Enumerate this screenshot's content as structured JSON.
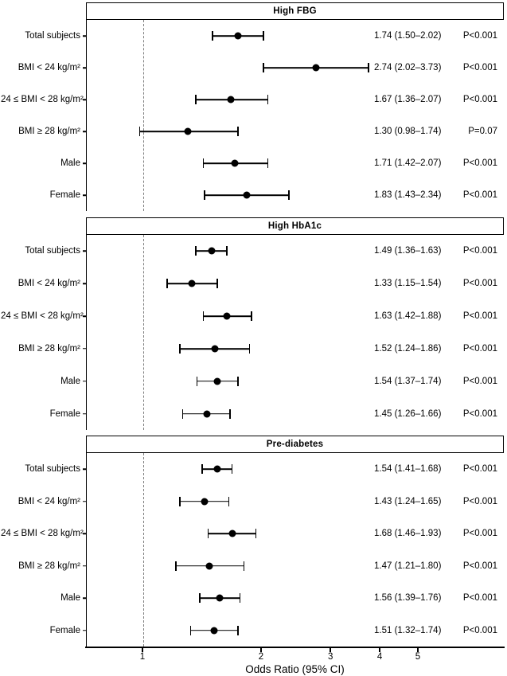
{
  "chart_data": {
    "type": "scatter",
    "subtype": "forest-plot",
    "xlabel": "Odds Ratio (95% CI)",
    "x_scale": "log10",
    "x_ticks": [
      "1",
      "2",
      "3",
      "4",
      "5"
    ],
    "x_tick_values": [
      1,
      2,
      3,
      4,
      5
    ],
    "reference_line_x": 1,
    "grid": false,
    "categories": [
      "Total subjects",
      "BMI < 24 kg/m²",
      "24 ≤ BMI < 28 kg/m²",
      "BMI ≥ 28 kg/m²",
      "Male",
      "Female"
    ],
    "colors": {
      "point": "#000000",
      "ci_line": "#000000",
      "reference_line": "#7f7f7f",
      "text": "#000000",
      "background": "#ffffff"
    },
    "panels": [
      {
        "title": "High FBG",
        "rows": [
          {
            "label": "Total subjects",
            "or": 1.74,
            "ci_low": 1.5,
            "ci_high": 2.02,
            "estimate_text": "1.74 (1.50–2.02)",
            "p_text": "P<0.001"
          },
          {
            "label": "BMI < 24 kg/m²",
            "or": 2.74,
            "ci_low": 2.02,
            "ci_high": 3.73,
            "estimate_text": "2.74 (2.02–3.73)",
            "p_text": "P<0.001"
          },
          {
            "label": "24 ≤ BMI < 28 kg/m²",
            "or": 1.67,
            "ci_low": 1.36,
            "ci_high": 2.07,
            "estimate_text": "1.67 (1.36–2.07)",
            "p_text": "P<0.001"
          },
          {
            "label": "BMI ≥ 28 kg/m²",
            "or": 1.3,
            "ci_low": 0.98,
            "ci_high": 1.74,
            "estimate_text": "1.30 (0.98–1.74)",
            "p_text": "P=0.07"
          },
          {
            "label": "Male",
            "or": 1.71,
            "ci_low": 1.42,
            "ci_high": 2.07,
            "estimate_text": "1.71 (1.42–2.07)",
            "p_text": "P<0.001"
          },
          {
            "label": "Female",
            "or": 1.83,
            "ci_low": 1.43,
            "ci_high": 2.34,
            "estimate_text": "1.83 (1.43–2.34)",
            "p_text": "P<0.001"
          }
        ]
      },
      {
        "title": "High HbA1c",
        "rows": [
          {
            "label": "Total subjects",
            "or": 1.49,
            "ci_low": 1.36,
            "ci_high": 1.63,
            "estimate_text": "1.49 (1.36–1.63)",
            "p_text": "P<0.001"
          },
          {
            "label": "BMI < 24 kg/m²",
            "or": 1.33,
            "ci_low": 1.15,
            "ci_high": 1.54,
            "estimate_text": "1.33 (1.15–1.54)",
            "p_text": "P<0.001"
          },
          {
            "label": "24 ≤ BMI < 28 kg/m²",
            "or": 1.63,
            "ci_low": 1.42,
            "ci_high": 1.88,
            "estimate_text": "1.63 (1.42–1.88)",
            "p_text": "P<0.001"
          },
          {
            "label": "BMI ≥ 28 kg/m²",
            "or": 1.52,
            "ci_low": 1.24,
            "ci_high": 1.86,
            "estimate_text": "1.52 (1.24–1.86)",
            "p_text": "P<0.001"
          },
          {
            "label": "Male",
            "or": 1.54,
            "ci_low": 1.37,
            "ci_high": 1.74,
            "estimate_text": "1.54 (1.37–1.74)",
            "p_text": "P<0.001"
          },
          {
            "label": "Female",
            "or": 1.45,
            "ci_low": 1.26,
            "ci_high": 1.66,
            "estimate_text": "1.45 (1.26–1.66)",
            "p_text": "P<0.001"
          }
        ]
      },
      {
        "title": "Pre-diabetes",
        "rows": [
          {
            "label": "Total subjects",
            "or": 1.54,
            "ci_low": 1.41,
            "ci_high": 1.68,
            "estimate_text": "1.54 (1.41–1.68)",
            "p_text": "P<0.001"
          },
          {
            "label": "BMI < 24 kg/m²",
            "or": 1.43,
            "ci_low": 1.24,
            "ci_high": 1.65,
            "estimate_text": "1.43 (1.24–1.65)",
            "p_text": "P<0.001"
          },
          {
            "label": "24 ≤ BMI < 28 kg/m²",
            "or": 1.68,
            "ci_low": 1.46,
            "ci_high": 1.93,
            "estimate_text": "1.68 (1.46–1.93)",
            "p_text": "P<0.001"
          },
          {
            "label": "BMI ≥ 28 kg/m²",
            "or": 1.47,
            "ci_low": 1.21,
            "ci_high": 1.8,
            "estimate_text": "1.47 (1.21–1.80)",
            "p_text": "P<0.001"
          },
          {
            "label": "Male",
            "or": 1.56,
            "ci_low": 1.39,
            "ci_high": 1.76,
            "estimate_text": "1.56 (1.39–1.76)",
            "p_text": "P<0.001"
          },
          {
            "label": "Female",
            "or": 1.51,
            "ci_low": 1.32,
            "ci_high": 1.74,
            "estimate_text": "1.51 (1.32–1.74)",
            "p_text": "P<0.001"
          }
        ]
      }
    ]
  }
}
